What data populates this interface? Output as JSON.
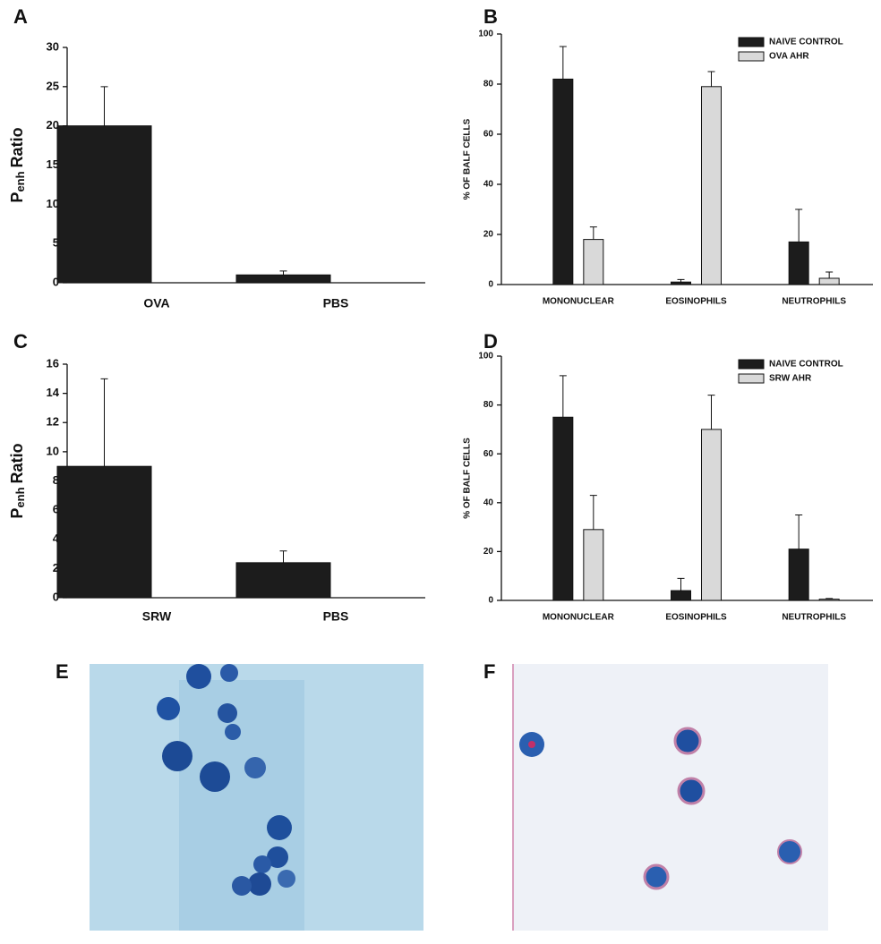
{
  "chart_data": [
    {
      "type": "bar",
      "panel_label": "A",
      "ylabel_parts": [
        "P",
        "enh",
        "Ratio"
      ],
      "categories": [
        "OVA",
        "PBS"
      ],
      "series": [
        {
          "color": "#1c1c1c",
          "values": [
            20,
            1
          ],
          "errors": [
            5,
            0.5
          ]
        }
      ],
      "ylim": [
        0,
        30
      ],
      "yticks": [
        0,
        5,
        10,
        15,
        20,
        25,
        30
      ]
    },
    {
      "type": "bar",
      "panel_label": "B",
      "ylabel": "% OF BALF CELLS",
      "categories": [
        "MONONUCLEAR",
        "EOSINOPHILS",
        "NEUTROPHILS"
      ],
      "series": [
        {
          "name": "NAIVE CONTROL",
          "color": "#1c1c1c",
          "values": [
            82,
            1,
            17
          ],
          "errors": [
            13,
            1,
            13
          ]
        },
        {
          "name": "OVA AHR",
          "color": "#d9d9d9",
          "values": [
            18,
            79,
            2.5
          ],
          "errors": [
            5,
            6,
            2.5
          ]
        }
      ],
      "ylim": [
        0,
        100
      ],
      "yticks": [
        0,
        20,
        40,
        60,
        80,
        100
      ],
      "legend": "top-right"
    },
    {
      "type": "bar",
      "panel_label": "C",
      "ylabel_parts": [
        "P",
        "enh",
        "Ratio"
      ],
      "categories": [
        "SRW",
        "PBS"
      ],
      "series": [
        {
          "color": "#1c1c1c",
          "values": [
            9,
            2.4
          ],
          "errors": [
            6,
            0.8
          ]
        }
      ],
      "ylim": [
        0,
        16
      ],
      "yticks": [
        0,
        2,
        4,
        6,
        8,
        10,
        12,
        14,
        16
      ]
    },
    {
      "type": "bar",
      "panel_label": "D",
      "ylabel": "% OF BALF CELLS",
      "categories": [
        "MONONUCLEAR",
        "EOSINOPHILS",
        "NEUTROPHILS"
      ],
      "series": [
        {
          "name": "NAIVE CONTROL",
          "color": "#1c1c1c",
          "values": [
            75,
            4,
            21
          ],
          "errors": [
            17,
            5,
            14
          ]
        },
        {
          "name": "SRW AHR",
          "color": "#d9d9d9",
          "values": [
            29,
            70,
            0.5
          ],
          "errors": [
            14,
            14,
            0.3
          ]
        }
      ],
      "ylim": [
        0,
        100
      ],
      "yticks": [
        0,
        20,
        40,
        60,
        80,
        100
      ],
      "legend": "top-right"
    }
  ],
  "images": [
    {
      "label": "E"
    },
    {
      "label": "F"
    }
  ]
}
